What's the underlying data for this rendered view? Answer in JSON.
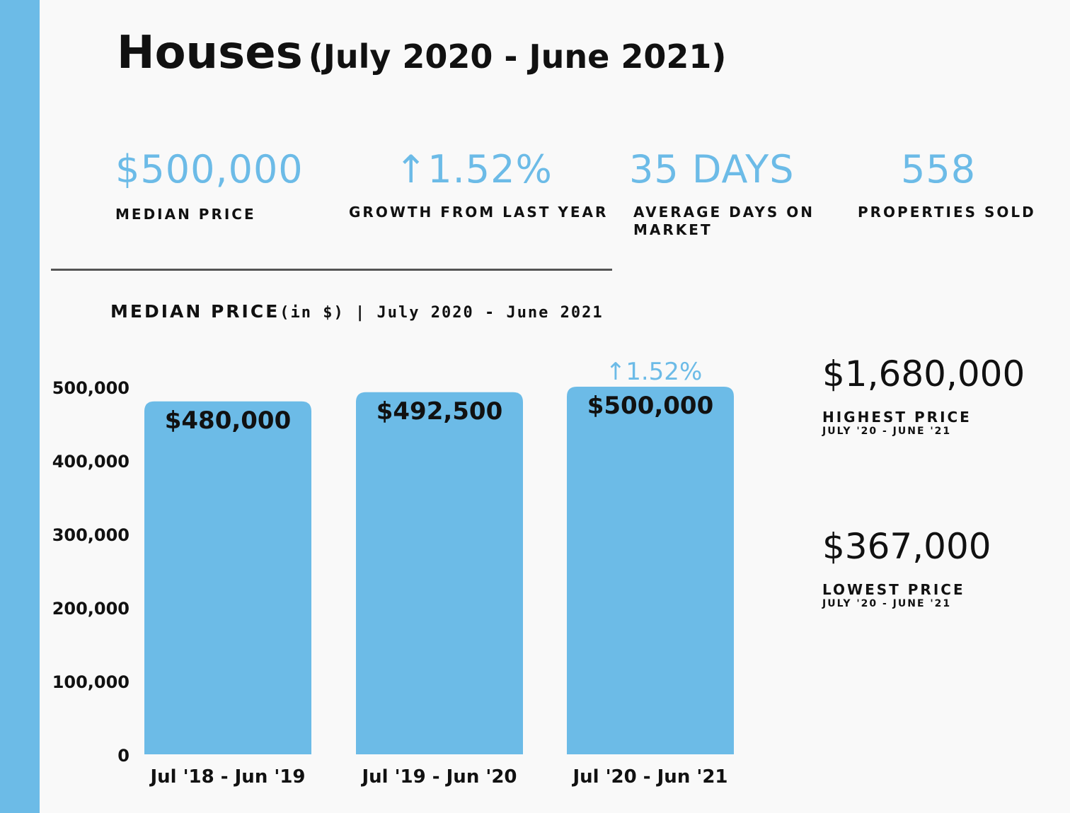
{
  "colors": {
    "accent": "#6cbbe7",
    "text": "#111111",
    "background": "#f9f9f9"
  },
  "title": {
    "main": "Houses",
    "sub": "(July 2020 - June 2021)"
  },
  "stats": [
    {
      "value": "$500,000",
      "label": "MEDIAN PRICE"
    },
    {
      "value": "↑1.52%",
      "label": "GROWTH FROM LAST YEAR"
    },
    {
      "value": "35 DAYS",
      "label": "AVERAGE DAYS ON MARKET"
    },
    {
      "value": "558",
      "label": "PROPERTIES SOLD"
    }
  ],
  "chart_title": {
    "main": "MEDIAN PRICE",
    "suffix": "(in $) | July 2020 - June 2021"
  },
  "chart_data": {
    "type": "bar",
    "title": "MEDIAN PRICE (in $) | July 2020 - June 2021",
    "categories": [
      "Jul '18 - Jun '19",
      "Jul '19 - Jun '20",
      "Jul '20 - Jun '21"
    ],
    "values": [
      480000,
      492500,
      500000
    ],
    "data_labels": [
      "$480,000",
      "$492,500",
      "$500,000"
    ],
    "annotation": {
      "category_index": 2,
      "text": "↑1.52%"
    },
    "yticks": [
      0,
      100000,
      200000,
      300000,
      400000,
      500000
    ],
    "ytick_labels": [
      "0",
      "100,000",
      "200,000",
      "300,000",
      "400,000",
      "500,000"
    ],
    "ylim": [
      0,
      500000
    ],
    "xlabel": "",
    "ylabel": "",
    "grid": false,
    "color": "#6cbbe7"
  },
  "side": {
    "highest": {
      "value": "$1,680,000",
      "label": "HIGHEST PRICE",
      "range": "JULY '20 - JUNE '21"
    },
    "lowest": {
      "value": "$367,000",
      "label": "LOWEST PRICE",
      "range": "JULY '20 - JUNE '21"
    }
  }
}
